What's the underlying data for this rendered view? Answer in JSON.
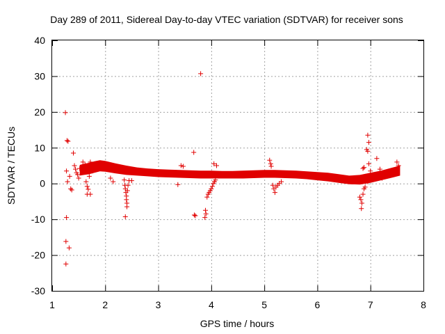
{
  "chart_data": {
    "type": "scatter",
    "title": "Day 289 of 2011, Sidereal Day-to-day VTEC variation (SDTVAR) for receiver sons",
    "xlabel": "GPS time / hours",
    "ylabel": "SDTVAR / TECUs",
    "xlim": [
      1,
      8
    ],
    "ylim": [
      -30,
      40
    ],
    "xticks": [
      1,
      2,
      3,
      4,
      5,
      6,
      7,
      8
    ],
    "yticks": [
      -30,
      -20,
      -10,
      0,
      10,
      20,
      30,
      40
    ],
    "grid": true,
    "marker": "plus",
    "color": "#e00000",
    "band": {
      "name": "dense SDTVAR trace",
      "x": [
        1.52,
        1.6,
        1.7,
        1.8,
        1.9,
        2.0,
        2.2,
        2.4,
        2.6,
        2.8,
        3.0,
        3.2,
        3.4,
        3.6,
        3.8,
        4.0,
        4.2,
        4.4,
        4.6,
        4.8,
        5.0,
        5.2,
        5.4,
        5.6,
        5.8,
        6.0,
        6.2,
        6.4,
        6.6,
        6.8,
        7.0,
        7.2,
        7.4,
        7.56
      ],
      "upper": [
        5.2,
        5.5,
        5.8,
        6.2,
        6.5,
        6.3,
        5.6,
        5.0,
        4.5,
        4.2,
        4.0,
        3.9,
        3.8,
        3.7,
        3.6,
        3.6,
        3.5,
        3.5,
        3.6,
        3.7,
        3.8,
        3.8,
        3.7,
        3.6,
        3.4,
        3.2,
        3.0,
        2.6,
        2.2,
        2.4,
        3.0,
        3.6,
        4.4,
        5.0
      ],
      "lower": [
        2.2,
        2.4,
        2.6,
        3.0,
        3.4,
        3.3,
        2.8,
        2.4,
        2.2,
        2.0,
        1.8,
        1.7,
        1.6,
        1.5,
        1.4,
        1.4,
        1.4,
        1.4,
        1.4,
        1.5,
        1.6,
        1.6,
        1.5,
        1.4,
        1.2,
        0.9,
        0.6,
        0.2,
        -0.2,
        -0.3,
        0.2,
        0.9,
        1.6,
        2.2
      ]
    },
    "points": [
      {
        "x": 1.25,
        "y": 19.8
      },
      {
        "x": 1.28,
        "y": 12.0
      },
      {
        "x": 1.3,
        "y": 11.8
      },
      {
        "x": 1.27,
        "y": 3.5
      },
      {
        "x": 1.29,
        "y": 0.5
      },
      {
        "x": 1.33,
        "y": 2.0
      },
      {
        "x": 1.35,
        "y": -1.5
      },
      {
        "x": 1.37,
        "y": -1.8
      },
      {
        "x": 1.4,
        "y": 8.5
      },
      {
        "x": 1.42,
        "y": 5.0
      },
      {
        "x": 1.44,
        "y": 4.0
      },
      {
        "x": 1.46,
        "y": 3.0
      },
      {
        "x": 1.48,
        "y": 2.5
      },
      {
        "x": 1.5,
        "y": 1.5
      },
      {
        "x": 1.52,
        "y": 4.2
      },
      {
        "x": 1.27,
        "y": -9.5
      },
      {
        "x": 1.26,
        "y": -16.2
      },
      {
        "x": 1.32,
        "y": -18.0
      },
      {
        "x": 1.26,
        "y": -22.5
      },
      {
        "x": 1.58,
        "y": 6.0
      },
      {
        "x": 1.62,
        "y": 5.2
      },
      {
        "x": 1.64,
        "y": 0.5
      },
      {
        "x": 1.66,
        "y": -0.8
      },
      {
        "x": 1.68,
        "y": -1.6
      },
      {
        "x": 1.66,
        "y": -3.0
      },
      {
        "x": 1.72,
        "y": -3.0
      },
      {
        "x": 1.72,
        "y": 6.0
      },
      {
        "x": 1.76,
        "y": 3.5
      },
      {
        "x": 1.7,
        "y": 2.0
      },
      {
        "x": 2.1,
        "y": 1.5
      },
      {
        "x": 2.15,
        "y": 0.5
      },
      {
        "x": 2.36,
        "y": 1.0
      },
      {
        "x": 2.37,
        "y": -0.5
      },
      {
        "x": 2.38,
        "y": -1.5
      },
      {
        "x": 2.39,
        "y": -2.5
      },
      {
        "x": 2.4,
        "y": -3.5
      },
      {
        "x": 2.4,
        "y": -4.5
      },
      {
        "x": 2.41,
        "y": -5.5
      },
      {
        "x": 2.41,
        "y": -6.5
      },
      {
        "x": 2.42,
        "y": -2.0
      },
      {
        "x": 2.43,
        "y": -0.5
      },
      {
        "x": 2.45,
        "y": 0.8
      },
      {
        "x": 2.5,
        "y": 0.8
      },
      {
        "x": 2.38,
        "y": -9.3
      },
      {
        "x": 3.37,
        "y": -0.3
      },
      {
        "x": 3.43,
        "y": 5.0
      },
      {
        "x": 3.47,
        "y": 4.8
      },
      {
        "x": 3.67,
        "y": 8.7
      },
      {
        "x": 3.68,
        "y": -8.8
      },
      {
        "x": 3.7,
        "y": -9.0
      },
      {
        "x": 3.8,
        "y": 30.7
      },
      {
        "x": 3.89,
        "y": -7.5
      },
      {
        "x": 3.9,
        "y": -8.5
      },
      {
        "x": 3.88,
        "y": -9.5
      },
      {
        "x": 3.92,
        "y": -3.8
      },
      {
        "x": 3.94,
        "y": -3.0
      },
      {
        "x": 3.96,
        "y": -2.5
      },
      {
        "x": 3.98,
        "y": -2.0
      },
      {
        "x": 4.0,
        "y": -1.5
      },
      {
        "x": 4.02,
        "y": -0.8
      },
      {
        "x": 4.04,
        "y": 0.0
      },
      {
        "x": 4.06,
        "y": 0.5
      },
      {
        "x": 4.08,
        "y": 1.0
      },
      {
        "x": 4.05,
        "y": 5.5
      },
      {
        "x": 4.1,
        "y": 5.0
      },
      {
        "x": 5.1,
        "y": 6.5
      },
      {
        "x": 5.12,
        "y": 5.5
      },
      {
        "x": 5.13,
        "y": 4.8
      },
      {
        "x": 5.16,
        "y": -0.5
      },
      {
        "x": 5.18,
        "y": -1.5
      },
      {
        "x": 5.2,
        "y": -2.5
      },
      {
        "x": 5.22,
        "y": -1.0
      },
      {
        "x": 5.25,
        "y": -0.5
      },
      {
        "x": 5.28,
        "y": 0.0
      },
      {
        "x": 5.32,
        "y": 0.5
      },
      {
        "x": 6.8,
        "y": -3.8
      },
      {
        "x": 6.82,
        "y": -4.5
      },
      {
        "x": 6.84,
        "y": -5.5
      },
      {
        "x": 6.83,
        "y": -7.0
      },
      {
        "x": 6.86,
        "y": -3.0
      },
      {
        "x": 6.88,
        "y": -1.5
      },
      {
        "x": 6.9,
        "y": -1.0
      },
      {
        "x": 6.86,
        "y": 4.2
      },
      {
        "x": 6.88,
        "y": 4.5
      },
      {
        "x": 6.93,
        "y": 9.5
      },
      {
        "x": 6.95,
        "y": 9.0
      },
      {
        "x": 6.95,
        "y": 13.5
      },
      {
        "x": 6.97,
        "y": 11.5
      },
      {
        "x": 6.97,
        "y": 5.5
      },
      {
        "x": 7.0,
        "y": 3.5
      },
      {
        "x": 6.95,
        "y": 0.5
      },
      {
        "x": 7.12,
        "y": 7.0
      },
      {
        "x": 7.18,
        "y": 4.0
      },
      {
        "x": 7.22,
        "y": 1.5
      },
      {
        "x": 7.3,
        "y": 2.5
      },
      {
        "x": 7.5,
        "y": 6.0
      },
      {
        "x": 7.53,
        "y": 5.0
      },
      {
        "x": 7.05,
        "y": 2.0
      }
    ]
  }
}
